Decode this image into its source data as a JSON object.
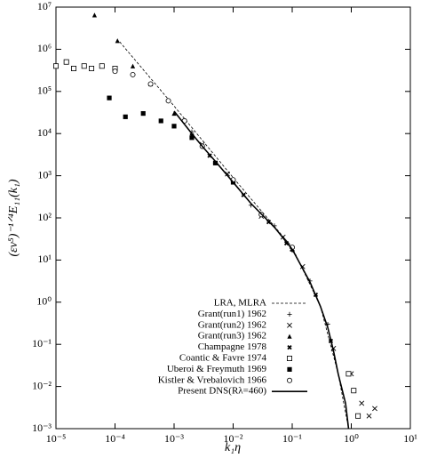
{
  "chart_data": {
    "type": "scatter",
    "x_label": "k₁η",
    "y_label": "(εν⁵)⁻¹ᐟ⁴E₁₁(k₁)",
    "log_x": true,
    "log_y": true,
    "grid": false,
    "legend": "lower center",
    "xlim": [
      1e-05,
      10
    ],
    "ylim": [
      0.001,
      10000000.0
    ],
    "xticks": [
      {
        "value": 1e-05,
        "label": "10⁻⁵"
      },
      {
        "value": 0.0001,
        "label": "10⁻⁴"
      },
      {
        "value": 0.001,
        "label": "10⁻³"
      },
      {
        "value": 0.01,
        "label": "10⁻²"
      },
      {
        "value": 0.1,
        "label": "10⁻¹"
      },
      {
        "value": 1,
        "label": "10⁰"
      },
      {
        "value": 10,
        "label": "10¹"
      }
    ],
    "yticks": [
      {
        "value": 0.001,
        "label": "10⁻³"
      },
      {
        "value": 0.01,
        "label": "10⁻²"
      },
      {
        "value": 0.1,
        "label": "10⁻¹"
      },
      {
        "value": 1,
        "label": "10⁰"
      },
      {
        "value": 10,
        "label": "10¹"
      },
      {
        "value": 100,
        "label": "10²"
      },
      {
        "value": 1000,
        "label": "10³"
      },
      {
        "value": 10000.0,
        "label": "10⁴"
      },
      {
        "value": 100000.0,
        "label": "10⁵"
      },
      {
        "value": 1000000.0,
        "label": "10⁶"
      },
      {
        "value": 10000000.0,
        "label": "10⁷"
      }
    ],
    "series": [
      {
        "name": "LRA, MLRA",
        "marker": "dashed",
        "color": "#000",
        "x": [
          0.00012,
          0.001,
          0.01,
          0.1,
          0.3,
          0.6,
          0.9
        ],
        "y": [
          1500000.0,
          45000.0,
          900,
          20,
          0.8,
          0.02,
          0.001
        ]
      },
      {
        "name": "Grant(run1) 1962",
        "marker": "plus",
        "color": "#000",
        "x": [
          0.002,
          0.005,
          0.01,
          0.02,
          0.05,
          0.1,
          0.2,
          0.4
        ],
        "y": [
          11000,
          2000,
          750,
          200,
          65,
          17,
          3.2,
          0.3
        ]
      },
      {
        "name": "Grant(run2) 1962",
        "marker": "cross",
        "color": "#000",
        "x": [
          0.003,
          0.008,
          0.03,
          0.07,
          0.15,
          0.5,
          1.0,
          1.5,
          2.0,
          2.5
        ],
        "y": [
          5500,
          1100,
          110,
          35,
          7,
          0.08,
          0.02,
          0.004,
          0.002,
          0.003
        ]
      },
      {
        "name": "Grant(run3) 1962",
        "marker": "triangle",
        "color": "#000",
        "x": [
          4.5e-05,
          0.00011,
          0.0002,
          0.0004,
          0.001,
          0.01,
          0.1
        ],
        "y": [
          6500000.0,
          1600000.0,
          400000.0,
          150000.0,
          30000.0,
          700,
          18
        ]
      },
      {
        "name": "Champagne 1978",
        "marker": "xbold",
        "color": "#000",
        "x": [
          0.002,
          0.004,
          0.015,
          0.04,
          0.08,
          0.25,
          0.45
        ],
        "y": [
          9000,
          3000,
          350,
          80,
          25,
          1.5,
          0.12
        ]
      },
      {
        "name": "Coantic & Favre 1974",
        "marker": "square",
        "color": "#000",
        "x": [
          1e-05,
          1.5e-05,
          2e-05,
          3e-05,
          4e-05,
          6e-05,
          0.0001,
          0.9,
          1.1,
          1.3
        ],
        "y": [
          400000.0,
          500000.0,
          350000.0,
          400000.0,
          350000.0,
          400000.0,
          350000.0,
          0.02,
          0.008,
          0.002
        ]
      },
      {
        "name": "Uberoi & Freymuth 1969",
        "marker": "fsquare",
        "color": "#000",
        "x": [
          8e-05,
          0.00015,
          0.0003,
          0.0006,
          0.001,
          0.002,
          0.005,
          0.01
        ],
        "y": [
          70000.0,
          25000.0,
          30000.0,
          20000.0,
          15000.0,
          8000,
          2000,
          700
        ]
      },
      {
        "name": "Kistler & Vrebalovich 1966",
        "marker": "circle",
        "color": "#000",
        "x": [
          0.0001,
          0.0002,
          0.0004,
          0.0008,
          0.0015,
          0.003,
          0.01,
          0.03,
          0.1
        ],
        "y": [
          300000.0,
          250000.0,
          150000.0,
          60000.0,
          20000.0,
          5000,
          800,
          120,
          20
        ]
      },
      {
        "name": "Present DNS(Rλ=460)",
        "marker": "solid",
        "color": "#000",
        "x": [
          0.001,
          0.002,
          0.003,
          0.005,
          0.01,
          0.02,
          0.05,
          0.1,
          0.2,
          0.3,
          0.4,
          0.5,
          0.6,
          0.8,
          0.9
        ],
        "y": [
          34000,
          10000,
          5000,
          2200,
          700,
          220,
          60,
          18,
          3,
          0.8,
          0.25,
          0.07,
          0.02,
          0.004,
          0.001
        ]
      }
    ]
  }
}
